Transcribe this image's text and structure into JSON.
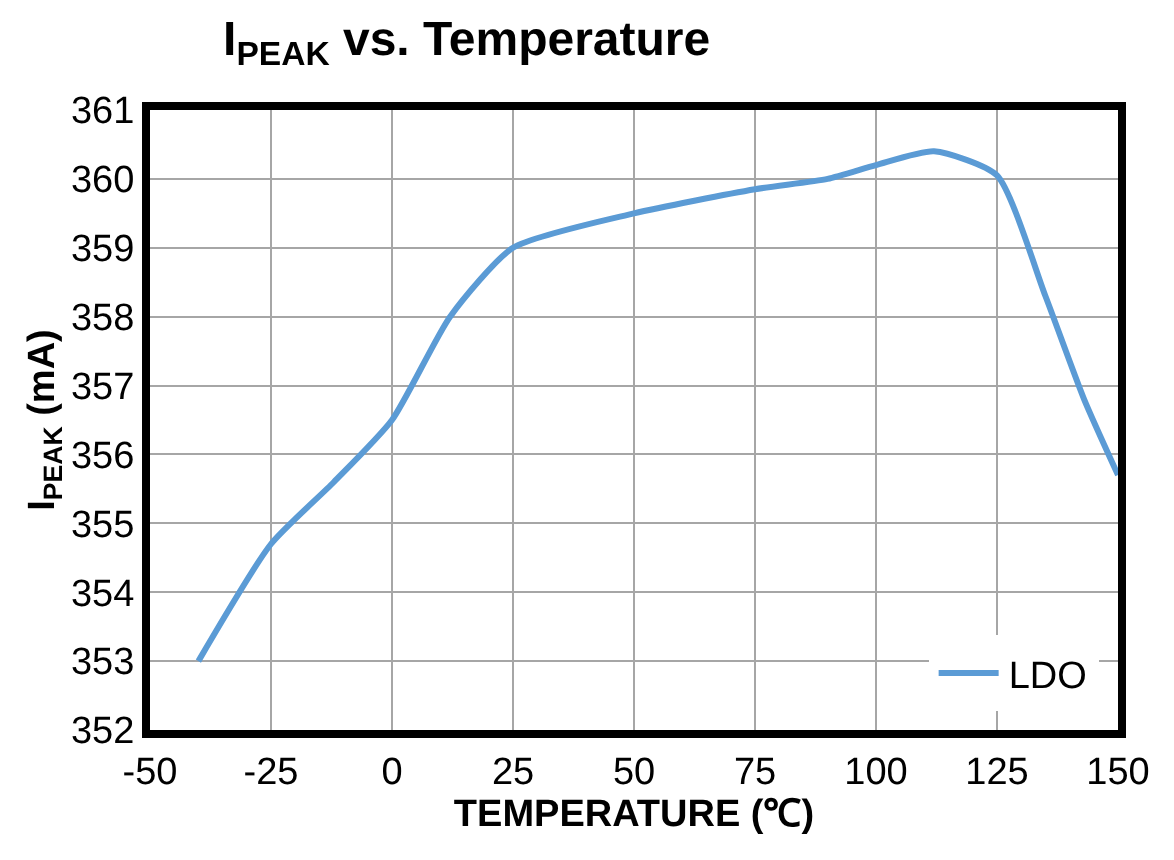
{
  "chart_data": {
    "type": "line",
    "title": "I$_{PEAK}$ vs. Temperature",
    "xlabel": "TEMPERATURE (℃)",
    "ylabel": "I$_{PEAK}$ (mA)",
    "series": [
      {
        "name": "LDO",
        "color": "#5b9bd5",
        "x": [
          -40,
          -25,
          -12,
          0,
          12,
          25,
          50,
          75,
          90,
          100,
          112,
          125,
          135,
          143,
          150
        ],
        "values": [
          353.0,
          354.7,
          355.6,
          356.5,
          358.0,
          359.0,
          359.5,
          359.85,
          360.0,
          360.2,
          360.4,
          360.05,
          358.3,
          356.8,
          355.7
        ]
      }
    ],
    "xlim": [
      -50,
      150
    ],
    "xticks": [
      -50,
      -25,
      0,
      25,
      50,
      75,
      100,
      125,
      150
    ],
    "ylim": [
      352,
      361
    ],
    "yticks": [
      352,
      353,
      354,
      355,
      356,
      357,
      358,
      359,
      360,
      361
    ],
    "grid": true,
    "legend": "bottom right",
    "marker": "none",
    "line_style": "solid"
  }
}
